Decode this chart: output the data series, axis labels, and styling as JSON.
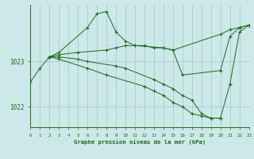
{
  "title": "Graphe pression niveau de la mer (hPa)",
  "bg_color": "#cce8e8",
  "grid_color": "#aacccc",
  "line_color": "#1a6b1a",
  "xlim": [
    0,
    23
  ],
  "ylim": [
    1021.55,
    1024.25
  ],
  "yticks": [
    1022,
    1023
  ],
  "xticks": [
    0,
    1,
    2,
    3,
    4,
    5,
    6,
    7,
    8,
    9,
    10,
    11,
    12,
    13,
    14,
    15,
    16,
    17,
    18,
    19,
    20,
    21,
    22,
    23
  ],
  "series": [
    {
      "x": [
        0,
        1,
        2,
        3,
        6,
        7,
        8,
        9,
        10,
        11,
        14,
        15,
        16,
        20,
        21,
        22,
        23
      ],
      "y": [
        1022.55,
        1022.85,
        1023.1,
        1023.2,
        1023.75,
        1024.05,
        1024.1,
        1023.65,
        1023.45,
        1023.35,
        1023.3,
        1023.25,
        1022.7,
        1022.8,
        1023.55,
        1023.75,
        1023.8
      ]
    },
    {
      "x": [
        2,
        3,
        5,
        8,
        9,
        10,
        11,
        12,
        13,
        14,
        15,
        20,
        21,
        22,
        23
      ],
      "y": [
        1023.1,
        1023.15,
        1023.2,
        1023.25,
        1023.3,
        1023.35,
        1023.35,
        1023.35,
        1023.3,
        1023.3,
        1023.25,
        1023.6,
        1023.7,
        1023.75,
        1023.8
      ]
    },
    {
      "x": [
        2,
        3,
        5,
        6,
        9,
        10,
        13,
        14,
        15,
        16,
        17,
        18,
        19,
        20
      ],
      "y": [
        1023.1,
        1023.1,
        1023.05,
        1023.0,
        1022.9,
        1022.85,
        1022.6,
        1022.5,
        1022.4,
        1022.25,
        1022.15,
        1021.85,
        1021.75,
        1021.75
      ]
    },
    {
      "x": [
        2,
        3,
        6,
        8,
        12,
        13,
        14,
        15,
        16,
        17,
        18,
        19,
        20,
        21,
        22,
        23
      ],
      "y": [
        1023.1,
        1023.05,
        1022.85,
        1022.7,
        1022.45,
        1022.35,
        1022.25,
        1022.1,
        1022.0,
        1021.85,
        1021.8,
        1021.75,
        1021.75,
        1022.5,
        1023.65,
        1023.8
      ]
    }
  ]
}
